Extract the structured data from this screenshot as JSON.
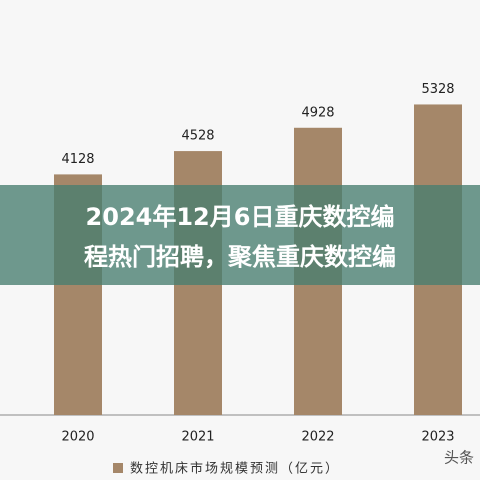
{
  "chart_data": {
    "type": "bar",
    "title": [
      "2024年12月6日重庆数控编",
      "程热门招聘，聚焦重庆数控编"
    ],
    "categories": [
      "2020",
      "2021",
      "2022",
      "2023"
    ],
    "series": [
      {
        "name": "数控机床市场规模预测（亿元）",
        "color": "#a58769",
        "values": [
          4128,
          4528,
          4928,
          5328
        ]
      }
    ],
    "ylim": [
      0,
      7000
    ],
    "watermark": "头条"
  }
}
